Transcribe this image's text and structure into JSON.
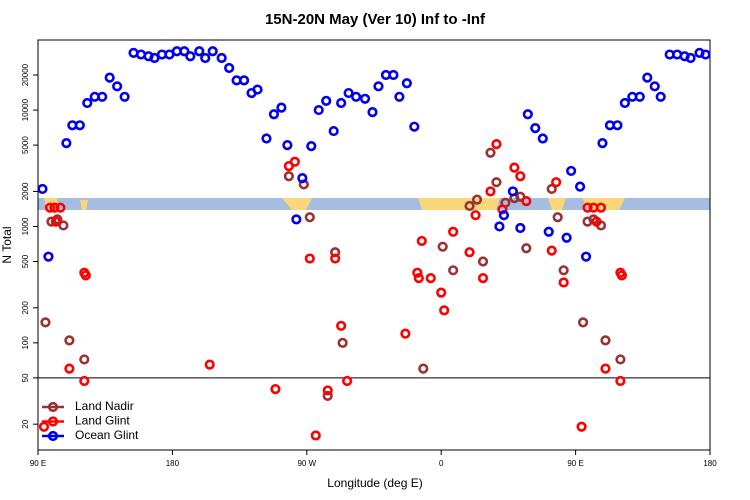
{
  "chart_data": {
    "type": "scatter",
    "title": "15N-20N May (Ver 10)   Inf to -Inf",
    "x_label": "Longitude (deg E)",
    "y_label": "N Total",
    "xlim": [
      90,
      540
    ],
    "xticks": [
      {
        "value": 90,
        "label": "90 E"
      },
      {
        "value": 180,
        "label": "180"
      },
      {
        "value": 270,
        "label": "90 W"
      },
      {
        "value": 360,
        "label": "0"
      },
      {
        "value": 450,
        "label": "90 E"
      },
      {
        "value": 540,
        "label": "180"
      }
    ],
    "ylim": [
      12,
      40000
    ],
    "y_scale": "log",
    "yticks": [
      20,
      50,
      100,
      200,
      500,
      1000,
      2000,
      5000,
      10000,
      20000
    ],
    "reference_line": 50,
    "legend": "bottom-left",
    "series": [
      {
        "name": "Land Nadir",
        "color": "#993333",
        "x": [
          95,
          99,
          103,
          107,
          111,
          121,
          258,
          268,
          272,
          289,
          294,
          284,
          348,
          361,
          368,
          379,
          384,
          388,
          393,
          397,
          403,
          409,
          413,
          417,
          434,
          438,
          442,
          455,
          458,
          462,
          467,
          470,
          480
        ],
        "values": [
          150,
          1100,
          1150,
          1020,
          105,
          72,
          2700,
          2300,
          1200,
          600,
          100,
          35,
          60,
          670,
          420,
          1500,
          1700,
          500,
          4300,
          2400,
          1600,
          1750,
          1800,
          650,
          2100,
          1200,
          420,
          150,
          1100,
          1150,
          1020,
          105,
          72
        ]
      },
      {
        "name": "Land Glint",
        "color": "#ff0000",
        "x": [
          94,
          98,
          101,
          102,
          105,
          111,
          121,
          122,
          121,
          205,
          249,
          258,
          262,
          272,
          276,
          284,
          289,
          293,
          297,
          336,
          344,
          345,
          347,
          353,
          360,
          362,
          368,
          379,
          383,
          388,
          393,
          397,
          401,
          409,
          413,
          417,
          434,
          437,
          442,
          454,
          458,
          462,
          464,
          467,
          470,
          480,
          481,
          480
        ],
        "values": [
          19,
          1450,
          1450,
          1100,
          1450,
          60,
          400,
          380,
          47,
          65,
          40,
          3300,
          3600,
          530,
          16,
          39,
          530,
          140,
          47,
          120,
          400,
          360,
          750,
          360,
          270,
          190,
          900,
          600,
          1250,
          360,
          2000,
          5100,
          1400,
          3200,
          2700,
          1650,
          620,
          2400,
          330,
          19,
          1450,
          1450,
          1100,
          1450,
          60,
          400,
          380,
          47
        ]
      },
      {
        "name": "Ocean Glint",
        "color": "#0000ee",
        "x": [
          93,
          97,
          109,
          113,
          118,
          123,
          128,
          133,
          138,
          143,
          148,
          154,
          159,
          164,
          168,
          173,
          178,
          183,
          188,
          192,
          198,
          202,
          207,
          213,
          218,
          223,
          228,
          233,
          237,
          243,
          248,
          253,
          257,
          263,
          267,
          273,
          278,
          283,
          288,
          293,
          298,
          303,
          309,
          314,
          318,
          323,
          328,
          332,
          337,
          342,
          399,
          402,
          408,
          413,
          418,
          423,
          428,
          432,
          444,
          447,
          453,
          457,
          468,
          473,
          478,
          483,
          488,
          493,
          498,
          503,
          507,
          513,
          518,
          523,
          527,
          533,
          537
        ],
        "values": [
          2100,
          550,
          5200,
          7400,
          7400,
          11500,
          13000,
          13000,
          19000,
          16000,
          13000,
          31000,
          30000,
          29000,
          28000,
          30000,
          30000,
          32000,
          32000,
          29000,
          32000,
          28000,
          32000,
          28000,
          23000,
          18000,
          18000,
          14000,
          15000,
          5700,
          9200,
          10500,
          5000,
          1150,
          2600,
          4900,
          10000,
          12000,
          6600,
          11500,
          14000,
          13000,
          12500,
          9600,
          16000,
          20000,
          20000,
          13000,
          17000,
          7200,
          1000,
          1250,
          2000,
          970,
          9200,
          7000,
          5700,
          900,
          800,
          3000,
          2200,
          550,
          5200,
          7400,
          7400,
          11500,
          13000,
          13000,
          19000,
          16000,
          13000,
          30000,
          30000,
          29000,
          28000,
          31000,
          30000
        ]
      }
    ]
  }
}
